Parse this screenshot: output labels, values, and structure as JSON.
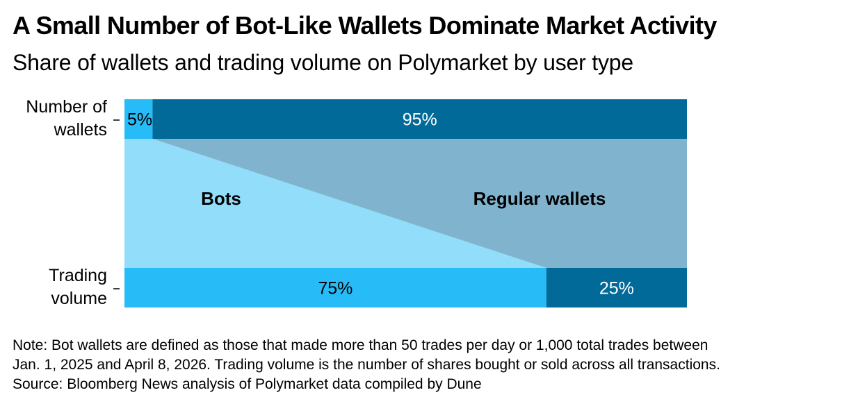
{
  "title": "A Small Number of Bot-Like Wallets Dominate Market Activity",
  "subtitle": "Share of wallets and trading volume on Polymarket by user type",
  "chart_data": {
    "type": "bar",
    "orientation": "horizontal",
    "stacked": true,
    "percent_stacked": true,
    "categories": [
      "Number of wallets",
      "Trading volume"
    ],
    "category_label_lines": [
      [
        "Number of",
        "wallets"
      ],
      [
        "Trading",
        "volume"
      ]
    ],
    "series": [
      {
        "name": "Bots",
        "values": [
          5,
          75
        ],
        "value_labels": [
          "5%",
          "75%"
        ],
        "bar_color": "#27BBF7",
        "band_color": "#92DDF9"
      },
      {
        "name": "Regular wallets",
        "values": [
          95,
          25
        ],
        "value_labels": [
          "95%",
          "25%"
        ],
        "bar_color": "#016A98",
        "band_color": "#80B4CE"
      }
    ],
    "xlim": [
      0,
      100
    ],
    "unit": "%",
    "grid": false,
    "legend": "inline-labels"
  },
  "colors": {
    "label_dark": "#000000",
    "label_light": "#ffffff",
    "tick": "#000000"
  },
  "notes": {
    "line1": "Note: Bot wallets are defined as those that made more than 50 trades per day or 1,000 total trades between",
    "line2": "Jan. 1, 2025 and April 8, 2026. Trading volume is the number of shares bought or sold across all transactions.",
    "source": "Source: Bloomberg News analysis of Polymarket data compiled by Dune"
  }
}
